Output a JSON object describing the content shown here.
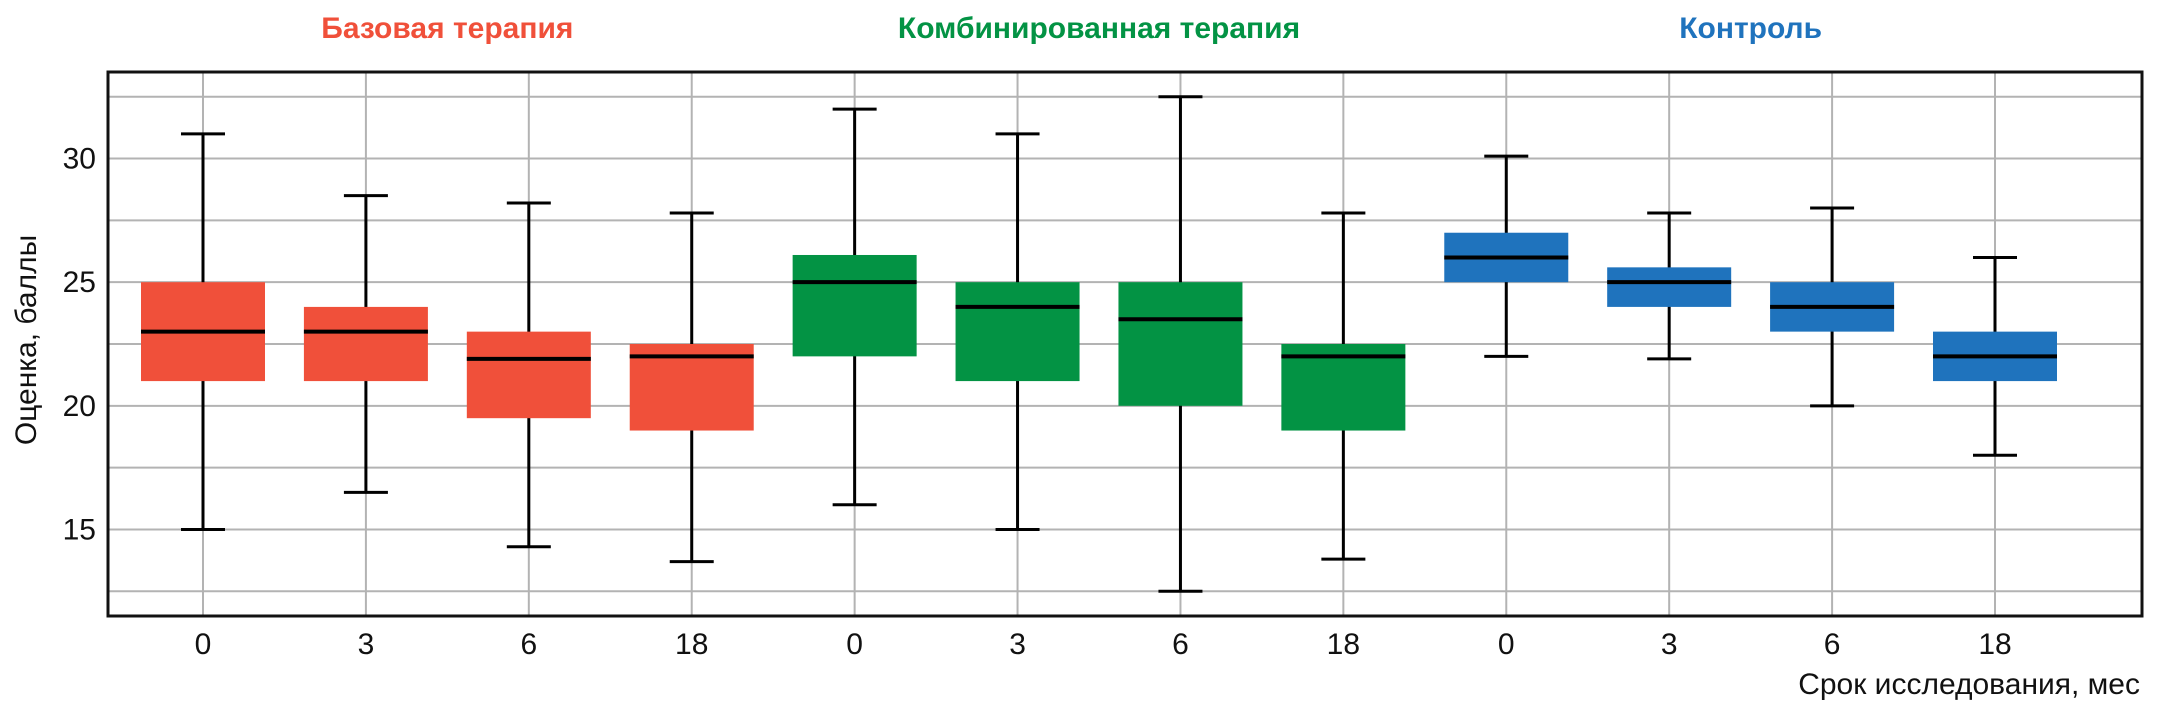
{
  "chart_data": {
    "type": "boxplot",
    "ylabel": "Оценка, баллы",
    "xlabel": "Срок исследования, мес",
    "ylim": [
      11.5,
      33.5
    ],
    "yticks": [
      15,
      20,
      25,
      30
    ],
    "grid": true,
    "groups": [
      {
        "name": "Базовая терапия",
        "color": "#f0503a",
        "boxes": [
          {
            "x": "0",
            "whisker_low": 15.0,
            "q1": 21.0,
            "median": 23.0,
            "q3": 25.0,
            "whisker_high": 31.0
          },
          {
            "x": "3",
            "whisker_low": 16.5,
            "q1": 21.0,
            "median": 23.0,
            "q3": 24.0,
            "whisker_high": 28.5
          },
          {
            "x": "6",
            "whisker_low": 14.3,
            "q1": 19.5,
            "median": 21.9,
            "q3": 23.0,
            "whisker_high": 28.2
          },
          {
            "x": "18",
            "whisker_low": 13.7,
            "q1": 19.0,
            "median": 22.0,
            "q3": 22.5,
            "whisker_high": 27.8
          }
        ]
      },
      {
        "name": "Комбинированная терапия",
        "color": "#039344",
        "boxes": [
          {
            "x": "0",
            "whisker_low": 16.0,
            "q1": 22.0,
            "median": 25.0,
            "q3": 26.1,
            "whisker_high": 32.0
          },
          {
            "x": "3",
            "whisker_low": 15.0,
            "q1": 21.0,
            "median": 24.0,
            "q3": 25.0,
            "whisker_high": 31.0
          },
          {
            "x": "6",
            "whisker_low": 12.5,
            "q1": 20.0,
            "median": 23.5,
            "q3": 25.0,
            "whisker_high": 32.5
          },
          {
            "x": "18",
            "whisker_low": 13.8,
            "q1": 19.0,
            "median": 22.0,
            "q3": 22.5,
            "whisker_high": 27.8
          }
        ]
      },
      {
        "name": "Контроль",
        "color": "#1f73bd",
        "boxes": [
          {
            "x": "0",
            "whisker_low": 22.0,
            "q1": 25.0,
            "median": 26.0,
            "q3": 27.0,
            "whisker_high": 30.1
          },
          {
            "x": "3",
            "whisker_low": 21.9,
            "q1": 24.0,
            "median": 25.0,
            "q3": 25.6,
            "whisker_high": 27.8
          },
          {
            "x": "6",
            "whisker_low": 20.0,
            "q1": 23.0,
            "median": 24.0,
            "q3": 25.0,
            "whisker_high": 28.0
          },
          {
            "x": "18",
            "whisker_low": 18.0,
            "q1": 21.0,
            "median": 22.0,
            "q3": 23.0,
            "whisker_high": 26.0
          }
        ]
      }
    ]
  }
}
